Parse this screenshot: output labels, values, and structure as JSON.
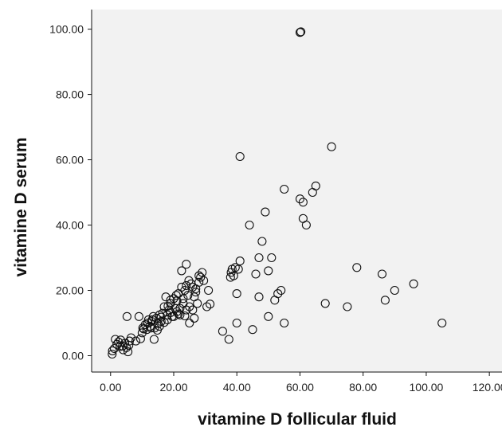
{
  "chart_data": {
    "type": "scatter",
    "title": "",
    "xlabel": "vitamine D follicular fluid",
    "ylabel": "vitamine D serum",
    "xlim": [
      -6,
      124
    ],
    "ylim": [
      -5,
      106
    ],
    "xticks": [
      0,
      20,
      40,
      60,
      80,
      100,
      120
    ],
    "yticks": [
      0,
      20,
      40,
      60,
      80,
      100
    ],
    "xtick_labels": [
      "0.00",
      "20.00",
      "40.00",
      "60.00",
      "80.00",
      "100.00",
      "120.00"
    ],
    "ytick_labels": [
      "0.00",
      "20.00",
      "40.00",
      "60.00",
      "80.00",
      "100.00"
    ],
    "grid": false,
    "plot_background": "#f2f2f2",
    "marker_color": "#111111",
    "points": [
      [
        0.5,
        0.5
      ],
      [
        0.6,
        1.5
      ],
      [
        1.2,
        2.2
      ],
      [
        1.5,
        5.0
      ],
      [
        2.0,
        3.5
      ],
      [
        2.5,
        4.2
      ],
      [
        3.0,
        2.8
      ],
      [
        3.2,
        4.8
      ],
      [
        3.8,
        3.0
      ],
      [
        4.0,
        1.8
      ],
      [
        4.5,
        3.8
      ],
      [
        5.0,
        2.5
      ],
      [
        5.5,
        1.2
      ],
      [
        5.8,
        3.2
      ],
      [
        6.0,
        4.5
      ],
      [
        5.2,
        12.0
      ],
      [
        6.5,
        5.5
      ],
      [
        9.0,
        12.0
      ],
      [
        8.0,
        4.5
      ],
      [
        9.5,
        5.2
      ],
      [
        10.0,
        7.0
      ],
      [
        10.2,
        8.5
      ],
      [
        11.0,
        9.5
      ],
      [
        11.5,
        8.0
      ],
      [
        12.0,
        11.0
      ],
      [
        12.5,
        9.0
      ],
      [
        13.0,
        10.5
      ],
      [
        13.5,
        12.0
      ],
      [
        13.8,
        5.0
      ],
      [
        14.0,
        8.5
      ],
      [
        14.5,
        11.5
      ],
      [
        15.0,
        9.8
      ],
      [
        15.5,
        12.5
      ],
      [
        16.0,
        10.5
      ],
      [
        16.5,
        13.0
      ],
      [
        17.0,
        15.0
      ],
      [
        17.5,
        18.0
      ],
      [
        18.0,
        11.0
      ],
      [
        18.5,
        14.0
      ],
      [
        19.0,
        16.0
      ],
      [
        19.5,
        12.0
      ],
      [
        20.0,
        17.5
      ],
      [
        20.5,
        14.5
      ],
      [
        21.0,
        13.5
      ],
      [
        21.5,
        19.0
      ],
      [
        22.0,
        12.5
      ],
      [
        22.5,
        26.0
      ],
      [
        23.0,
        16.0
      ],
      [
        23.5,
        20.0
      ],
      [
        24.0,
        28.0
      ],
      [
        24.5,
        18.5
      ],
      [
        25.0,
        10.0
      ],
      [
        25.5,
        22.0
      ],
      [
        26.0,
        14.0
      ],
      [
        26.5,
        18.0
      ],
      [
        27.0,
        20.5
      ],
      [
        27.5,
        16.0
      ],
      [
        28.0,
        22.5
      ],
      [
        28.5,
        24.0
      ],
      [
        29.0,
        25.5
      ],
      [
        29.5,
        23.0
      ],
      [
        30.5,
        15.0
      ],
      [
        31.0,
        20.0
      ],
      [
        31.5,
        15.8
      ],
      [
        18.0,
        12.5
      ],
      [
        19.0,
        13.2
      ],
      [
        21.0,
        16.8
      ],
      [
        23.0,
        17.5
      ],
      [
        24.0,
        21.5
      ],
      [
        26.0,
        21.0
      ],
      [
        20.0,
        12.0
      ],
      [
        22.0,
        14.5
      ],
      [
        15.5,
        9.0
      ],
      [
        16.0,
        11.8
      ],
      [
        17.0,
        10.2
      ],
      [
        14.8,
        7.8
      ],
      [
        12.8,
        8.5
      ],
      [
        13.2,
        11.0
      ],
      [
        11.8,
        10.0
      ],
      [
        10.5,
        8.2
      ],
      [
        25.0,
        15.0
      ],
      [
        24.0,
        14.0
      ],
      [
        26.5,
        11.5
      ],
      [
        27.0,
        19.5
      ],
      [
        28.0,
        24.5
      ],
      [
        22.5,
        21.0
      ],
      [
        19.0,
        17.0
      ],
      [
        18.2,
        15.2
      ],
      [
        20.8,
        18.5
      ],
      [
        24.8,
        23.0
      ],
      [
        23.5,
        12.2
      ],
      [
        21.5,
        12.8
      ],
      [
        35.5,
        7.5
      ],
      [
        37.5,
        5.0
      ],
      [
        38.0,
        24.0
      ],
      [
        38.2,
        25.5
      ],
      [
        38.5,
        26.5
      ],
      [
        39.0,
        24.5
      ],
      [
        39.5,
        27.0
      ],
      [
        40.0,
        10.0
      ],
      [
        40.0,
        19.0
      ],
      [
        40.5,
        26.5
      ],
      [
        41.0,
        29.0
      ],
      [
        41.0,
        61.0
      ],
      [
        44.0,
        40.0
      ],
      [
        45.0,
        8.0
      ],
      [
        46.0,
        25.0
      ],
      [
        47.0,
        18.0
      ],
      [
        47.0,
        30.0
      ],
      [
        48.0,
        35.0
      ],
      [
        49.0,
        44.0
      ],
      [
        50.0,
        12.0
      ],
      [
        50.0,
        26.0
      ],
      [
        51.0,
        30.0
      ],
      [
        52.0,
        17.0
      ],
      [
        53.0,
        19.0
      ],
      [
        54.0,
        20.0
      ],
      [
        55.0,
        10.0
      ],
      [
        55.0,
        51.0
      ],
      [
        60.0,
        99.0
      ],
      [
        60.3,
        99.2
      ],
      [
        60.0,
        48.0
      ],
      [
        61.0,
        47.0
      ],
      [
        61.0,
        42.0
      ],
      [
        62.0,
        40.0
      ],
      [
        64.0,
        50.0
      ],
      [
        65.0,
        52.0
      ],
      [
        68.0,
        16.0
      ],
      [
        70.0,
        64.0
      ],
      [
        75.0,
        15.0
      ],
      [
        78.0,
        27.0
      ],
      [
        86.0,
        25.0
      ],
      [
        87.0,
        17.0
      ],
      [
        90.0,
        20.0
      ],
      [
        96.0,
        22.0
      ],
      [
        105.0,
        10.0
      ]
    ]
  }
}
